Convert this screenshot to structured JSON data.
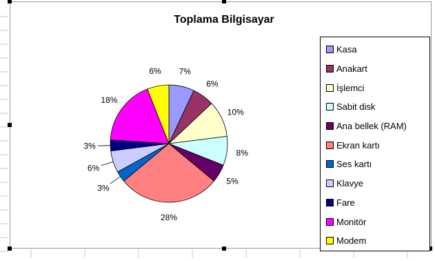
{
  "chart_data": {
    "type": "pie",
    "title": "Toplama Bilgisayar",
    "legend_position": "right",
    "categories": [
      "Kasa",
      "Anakart",
      "İşlemci",
      "Sabit disk",
      "Ana bellek (RAM)",
      "Ekran kartı",
      "Ses kartı",
      "Klavye",
      "Fare",
      "Monitör",
      "Modem"
    ],
    "values": [
      7,
      6,
      10,
      8,
      5,
      28,
      3,
      6,
      3,
      18,
      6
    ],
    "data_labels": [
      "7%",
      "6%",
      "10%",
      "8%",
      "5%",
      "28%",
      "3%",
      "6%",
      "3%",
      "18%",
      "6%"
    ],
    "colors": [
      "#9999ff",
      "#993366",
      "#ffffcc",
      "#ccffff",
      "#660066",
      "#ff8080",
      "#0066cc",
      "#ccccff",
      "#000080",
      "#ff00ff",
      "#ffff00"
    ]
  }
}
